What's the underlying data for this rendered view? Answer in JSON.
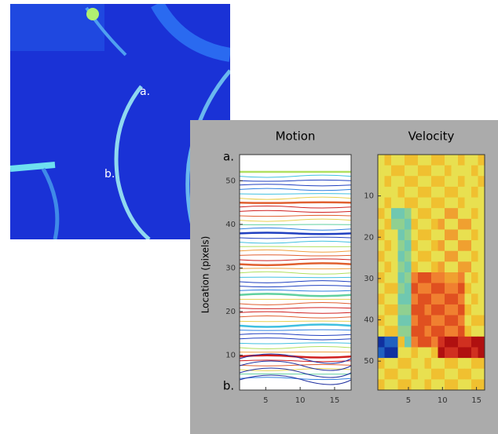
{
  "photo": {
    "label_a": "a.",
    "label_b": "b."
  },
  "figure": {
    "label_a": "a.",
    "label_b": "b.",
    "y_label": "Location (pixels)",
    "panels": [
      {
        "title": "Motion",
        "xlim": [
          1.2,
          17.4
        ],
        "ylim": [
          2,
          56
        ],
        "xticks": [
          5,
          10,
          15
        ],
        "yticks": [
          10,
          20,
          30,
          40,
          50
        ]
      },
      {
        "title": "Velocity",
        "xlim": [
          0.5,
          16.2
        ],
        "ylim": [
          57,
          0
        ],
        "xticks": [
          5,
          10,
          15
        ],
        "yticks": [
          10,
          20,
          30,
          40,
          50
        ]
      }
    ]
  }
}
